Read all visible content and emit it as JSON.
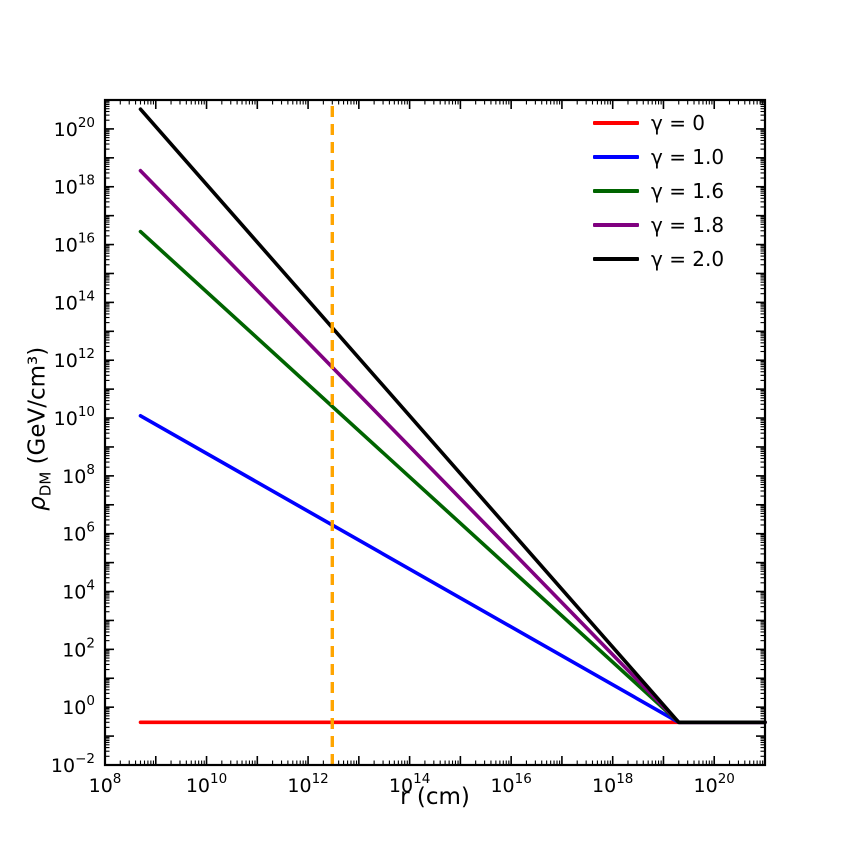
{
  "labels": {
    "x_axis": "r (cm)",
    "y_symbol": "ρ",
    "y_sub": "DM",
    "y_unit": " (GeV/cm³)"
  },
  "chart_data": {
    "type": "line",
    "title": "",
    "xlabel": "r (cm)",
    "ylabel": "ρ_DM (GeV/cm³)",
    "xscale": "log",
    "yscale": "log",
    "xlim": [
      100000000.0,
      1e+21
    ],
    "ylim": [
      0.01,
      1e+21
    ],
    "x_tick_exponents": [
      8,
      10,
      12,
      14,
      16,
      18,
      20
    ],
    "y_tick_exponents": [
      -2,
      0,
      2,
      4,
      6,
      8,
      10,
      12,
      14,
      16,
      18,
      20
    ],
    "grid": false,
    "legend_position": "upper right",
    "model": "rho(r) = rho0*(r_break/r)^gamma for r < r_break, else rho0",
    "rho0_GeV_per_cm3": 0.3,
    "r_break_cm": 2e+19,
    "series": [
      {
        "name": "γ = 0",
        "gamma": 0.0,
        "color": "#ff0000",
        "points": [
          [
            500000000.0,
            0.3
          ],
          [
            1e+21,
            0.3
          ]
        ]
      },
      {
        "name": "γ = 1.0",
        "gamma": 1.0,
        "color": "#0000ff",
        "points": [
          [
            500000000.0,
            12000000000.0
          ],
          [
            2e+19,
            0.3
          ],
          [
            1e+21,
            0.3
          ]
        ]
      },
      {
        "name": "γ = 1.6",
        "gamma": 1.6,
        "color": "#006400",
        "points": [
          [
            500000000.0,
            2.8e+16
          ],
          [
            2e+19,
            0.3
          ],
          [
            1e+21,
            0.3
          ]
        ]
      },
      {
        "name": "γ = 1.8",
        "gamma": 1.8,
        "color": "#800080",
        "points": [
          [
            500000000.0,
            3.6e+18
          ],
          [
            2e+19,
            0.3
          ],
          [
            1e+21,
            0.3
          ]
        ]
      },
      {
        "name": "γ = 2.0",
        "gamma": 2.0,
        "color": "#000000",
        "points": [
          [
            500000000.0,
            4.8e+20
          ],
          [
            2e+19,
            0.3
          ],
          [
            1e+21,
            0.3
          ]
        ]
      }
    ],
    "vline": {
      "x": 3000000000000.0,
      "color": "#ffa500",
      "style": "dashed"
    }
  }
}
